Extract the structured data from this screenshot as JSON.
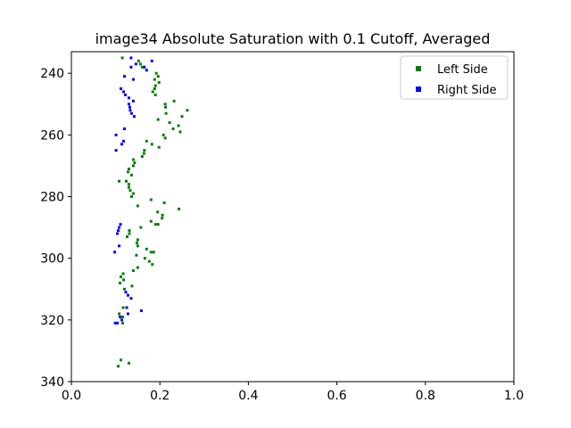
{
  "chart_data": {
    "type": "scatter",
    "title": "image34 Absolute Saturation with 0.1 Cutoff, Averaged",
    "xlabel": "",
    "ylabel": "",
    "xlim": [
      0.0,
      1.0
    ],
    "ylim": [
      340,
      233
    ],
    "y_inverted": true,
    "grid": false,
    "legend_position": "top-right",
    "x_ticks": [
      "0.0",
      "0.2",
      "0.4",
      "0.6",
      "0.8",
      "1.0"
    ],
    "y_ticks": [
      "240",
      "260",
      "280",
      "300",
      "320",
      "340"
    ],
    "series": [
      {
        "name": "Left Side",
        "color": "#008000",
        "points": [
          [
            0.115,
            235
          ],
          [
            0.152,
            236
          ],
          [
            0.156,
            237
          ],
          [
            0.16,
            238
          ],
          [
            0.192,
            240
          ],
          [
            0.196,
            241
          ],
          [
            0.188,
            242
          ],
          [
            0.198,
            243
          ],
          [
            0.19,
            244
          ],
          [
            0.188,
            245
          ],
          [
            0.184,
            246
          ],
          [
            0.19,
            247
          ],
          [
            0.232,
            249
          ],
          [
            0.212,
            250
          ],
          [
            0.213,
            251
          ],
          [
            0.262,
            252
          ],
          [
            0.214,
            253
          ],
          [
            0.25,
            254
          ],
          [
            0.196,
            255
          ],
          [
            0.222,
            256
          ],
          [
            0.242,
            257
          ],
          [
            0.23,
            258
          ],
          [
            0.246,
            259
          ],
          [
            0.208,
            260
          ],
          [
            0.212,
            261
          ],
          [
            0.17,
            262
          ],
          [
            0.182,
            263
          ],
          [
            0.198,
            264
          ],
          [
            0.165,
            265
          ],
          [
            0.164,
            266
          ],
          [
            0.16,
            267
          ],
          [
            0.14,
            268
          ],
          [
            0.143,
            269
          ],
          [
            0.14,
            270
          ],
          [
            0.13,
            271
          ],
          [
            0.128,
            272
          ],
          [
            0.136,
            273
          ],
          [
            0.124,
            275
          ],
          [
            0.108,
            275
          ],
          [
            0.13,
            276
          ],
          [
            0.13,
            277
          ],
          [
            0.133,
            278
          ],
          [
            0.14,
            279
          ],
          [
            0.136,
            280
          ],
          [
            0.18,
            281
          ],
          [
            0.21,
            282
          ],
          [
            0.15,
            283
          ],
          [
            0.243,
            284
          ],
          [
            0.195,
            285
          ],
          [
            0.206,
            286
          ],
          [
            0.205,
            287
          ],
          [
            0.18,
            288
          ],
          [
            0.196,
            289
          ],
          [
            0.19,
            289
          ],
          [
            0.157,
            290
          ],
          [
            0.131,
            291
          ],
          [
            0.131,
            292
          ],
          [
            0.126,
            293
          ],
          [
            0.15,
            294
          ],
          [
            0.148,
            295
          ],
          [
            0.15,
            296
          ],
          [
            0.17,
            297
          ],
          [
            0.18,
            298
          ],
          [
            0.186,
            298
          ],
          [
            0.147,
            299
          ],
          [
            0.166,
            300
          ],
          [
            0.176,
            301
          ],
          [
            0.183,
            302
          ],
          [
            0.15,
            303
          ],
          [
            0.14,
            304
          ],
          [
            0.117,
            305
          ],
          [
            0.112,
            306
          ],
          [
            0.118,
            307
          ],
          [
            0.11,
            308
          ],
          [
            0.137,
            309
          ],
          [
            0.12,
            310
          ],
          [
            0.117,
            316
          ],
          [
            0.108,
            318
          ],
          [
            0.116,
            319
          ],
          [
            0.116,
            321
          ],
          [
            0.112,
            333
          ],
          [
            0.13,
            334
          ],
          [
            0.106,
            335
          ]
        ]
      },
      {
        "name": "Right Side",
        "color": "#0000ff",
        "points": [
          [
            0.135,
            235
          ],
          [
            0.182,
            236
          ],
          [
            0.146,
            237
          ],
          [
            0.135,
            238
          ],
          [
            0.165,
            238
          ],
          [
            0.17,
            239
          ],
          [
            0.12,
            241
          ],
          [
            0.14,
            242
          ],
          [
            0.112,
            245
          ],
          [
            0.118,
            246
          ],
          [
            0.122,
            247
          ],
          [
            0.13,
            248
          ],
          [
            0.14,
            249
          ],
          [
            0.13,
            250
          ],
          [
            0.132,
            251
          ],
          [
            0.133,
            252
          ],
          [
            0.136,
            253
          ],
          [
            0.142,
            254
          ],
          [
            0.12,
            258
          ],
          [
            0.101,
            260
          ],
          [
            0.118,
            262
          ],
          [
            0.114,
            263
          ],
          [
            0.101,
            265
          ],
          [
            0.111,
            289
          ],
          [
            0.108,
            290
          ],
          [
            0.106,
            291
          ],
          [
            0.104,
            292
          ],
          [
            0.108,
            296
          ],
          [
            0.098,
            298
          ],
          [
            0.123,
            311
          ],
          [
            0.128,
            312
          ],
          [
            0.135,
            313
          ],
          [
            0.158,
            317
          ],
          [
            0.125,
            316
          ],
          [
            0.128,
            318
          ],
          [
            0.11,
            319
          ],
          [
            0.114,
            320
          ],
          [
            0.104,
            321
          ],
          [
            0.099,
            321
          ]
        ]
      }
    ]
  }
}
